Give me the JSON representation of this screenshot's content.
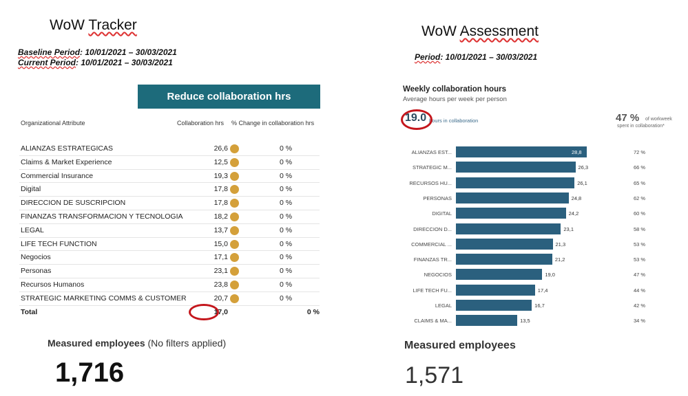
{
  "left": {
    "title_a": "WoW ",
    "title_b": "Tracker",
    "baseline_label": "Baseline Period",
    "baseline_value": ": 10/01/2021 – 30/03/2021",
    "current_label": "Current Period",
    "current_value": ": 10/01/2021 – 30/03/2021",
    "banner": "Reduce collaboration hrs",
    "headers": {
      "attribute": "Organizational Attribute",
      "hours": "Collaboration hrs",
      "change": "% Change in collaboration hrs"
    },
    "rows": [
      {
        "name": "ALIANZAS ESTRATEGICAS",
        "hours": "26,6",
        "change": "0 %"
      },
      {
        "name": "Claims & Market Experience",
        "hours": "12,5",
        "change": "0 %"
      },
      {
        "name": "Commercial Insurance",
        "hours": "19,3",
        "change": "0 %"
      },
      {
        "name": "Digital",
        "hours": "17,8",
        "change": "0 %"
      },
      {
        "name": "DIRECCION DE SUSCRIPCION",
        "hours": "17,8",
        "change": "0 %"
      },
      {
        "name": "FINANZAS TRANSFORMACION Y TECNOLOGIA",
        "hours": "18,2",
        "change": "0 %"
      },
      {
        "name": "LEGAL",
        "hours": "13,7",
        "change": "0 %"
      },
      {
        "name": "LIFE TECH FUNCTION",
        "hours": "15,0",
        "change": "0 %"
      },
      {
        "name": "Negocios",
        "hours": "17,1",
        "change": "0 %"
      },
      {
        "name": "Personas",
        "hours": "23,1",
        "change": "0 %"
      },
      {
        "name": "Recursos Humanos",
        "hours": "23,8",
        "change": "0 %"
      },
      {
        "name": "STRATEGIC MARKETING COMMS & CUSTOMER",
        "hours": "20,7",
        "change": "0 %"
      }
    ],
    "total": {
      "label": "Total",
      "hours": "17,0",
      "change": "0 %"
    },
    "measured_label": "Measured employees",
    "measured_note": " (No filters applied)",
    "measured_value": "1,716"
  },
  "right": {
    "title_a": "WoW ",
    "title_b": "Assessment",
    "period_label": "Period",
    "period_value": ": 10/01/2021 – 30/03/2021",
    "chart_title": "Weekly collaboration hours",
    "chart_subtitle": "Average hours per week per person",
    "avg_value": "19.0",
    "avg_label": "hours in collaboration",
    "pct_value": "47 %",
    "pct_label_1": "of workweek",
    "pct_label_2": "spent in collaboration*",
    "measured_label": "Measured employees",
    "measured_value": "1,571"
  },
  "chart_data": {
    "type": "bar",
    "orientation": "horizontal",
    "categories": [
      "ALIANZAS EST...",
      "STRATEGIC M...",
      "RECURSOS HU...",
      "PERSONAS",
      "DIGITAL",
      "DIRECCION D...",
      "COMMERCIAL ...",
      "FINANZAS TR...",
      "NEGOCIOS",
      "LIFE TECH FU...",
      "LEGAL",
      "CLAIMS & MA..."
    ],
    "values": [
      28.8,
      26.3,
      26.1,
      24.8,
      24.2,
      23.1,
      21.3,
      21.2,
      19.0,
      17.4,
      16.7,
      13.5
    ],
    "value_labels": [
      "28,8",
      "26,3",
      "26,1",
      "24,8",
      "24,2",
      "23,1",
      "21,3",
      "21,2",
      "19,0",
      "17,4",
      "16,7",
      "13,5"
    ],
    "percents": [
      "72 %",
      "66 %",
      "65 %",
      "62 %",
      "60 %",
      "58 %",
      "53 %",
      "53 %",
      "47 %",
      "44 %",
      "42 %",
      "34 %"
    ],
    "color": "#2b607e",
    "title": "Weekly collaboration hours",
    "subtitle": "Average hours per week per person"
  },
  "colors": {
    "banner": "#1d6b7b",
    "dot": "#d4a03a",
    "highlight_ellipse": "#c4161c",
    "bar": "#2b607e"
  }
}
